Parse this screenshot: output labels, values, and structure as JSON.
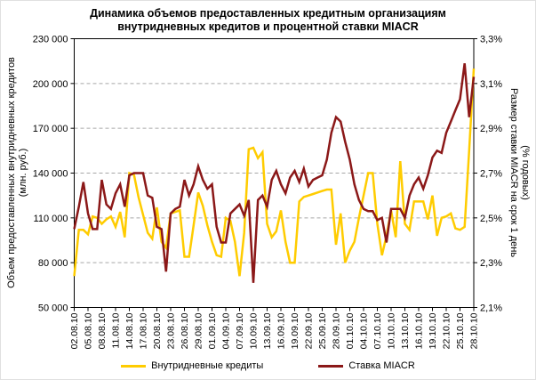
{
  "title": {
    "line1": "Динамика объемов предоставленных кредитным организациям",
    "line2": "внутридневных кредитов и процентной ставки MIACR"
  },
  "left_axis": {
    "title": "Объем предоставленных внутридневных кредитов",
    "units": "(млн. руб.)",
    "tick_labels": [
      "230 000",
      "200 000",
      "170 000",
      "140 000",
      "110 000",
      "80 000",
      "50 000"
    ]
  },
  "right_axis": {
    "title": "Размер ставки MIACR на срок 1 день",
    "units": "(% годовых)",
    "tick_labels": [
      "3,3%",
      "3,1%",
      "2,9%",
      "2,7%",
      "2,5%",
      "2,3%",
      "2,1%"
    ]
  },
  "x_axis": {
    "labels": [
      "02.08.10",
      "05.08.10",
      "08.08.10",
      "11.08.10",
      "14.08.10",
      "17.08.10",
      "20.08.10",
      "23.08.10",
      "26.08.10",
      "29.08.10",
      "01.09.10",
      "04.09.10",
      "07.09.10",
      "10.09.10",
      "13.09.10",
      "16.09.10",
      "19.09.10",
      "22.09.10",
      "25.09.10",
      "28.09.10",
      "01.10.10",
      "04.10.10",
      "07.10.10",
      "10.10.10",
      "13.10.10",
      "16.10.10",
      "19.10.10",
      "22.10.10",
      "25.10.10",
      "28.10.10"
    ]
  },
  "legend": {
    "items": [
      {
        "label": "Внутридневные кредиты"
      },
      {
        "label": "Ставка MIACR"
      }
    ]
  },
  "chart_data": {
    "type": "line",
    "x": {
      "start_date": "02.08.10",
      "end_date": "28.10.10",
      "step_days": 1,
      "n_points": 88,
      "tick_every_days": 3
    },
    "axes": {
      "left": {
        "min": 50000,
        "max": 230000,
        "step": 30000,
        "label": "млн. руб."
      },
      "right": {
        "min": 2.1,
        "max": 3.3,
        "step": 0.2,
        "label": "% годовых"
      }
    },
    "grid": "horizontal-dashed",
    "legend_position": "bottom",
    "colors": {
      "volumes": "#FFCC00",
      "miacr": "#8B1818",
      "gridline": "#a6a6a6",
      "axis": "#000000"
    },
    "series": [
      {
        "name": "Внутридневные кредиты",
        "axis": "left",
        "color": "#FFCC00",
        "values": [
          71000,
          102000,
          102000,
          99000,
          111000,
          110000,
          106000,
          109000,
          111000,
          104000,
          114000,
          97000,
          140000,
          139000,
          124000,
          112000,
          100000,
          96000,
          117000,
          94000,
          90000,
          113000,
          114000,
          115000,
          84000,
          84000,
          105000,
          127000,
          118000,
          105000,
          94000,
          85000,
          84000,
          110000,
          108000,
          94000,
          71000,
          100000,
          156000,
          157000,
          150000,
          154000,
          106000,
          97000,
          101000,
          115000,
          94000,
          80000,
          80000,
          121000,
          124000,
          125000,
          126000,
          127000,
          128000,
          129000,
          129000,
          92000,
          113000,
          80000,
          88000,
          94000,
          110000,
          125000,
          140000,
          140000,
          106000,
          85000,
          98000,
          115000,
          97000,
          148000,
          106000,
          102000,
          121000,
          121000,
          121000,
          109000,
          125000,
          98000,
          110000,
          111000,
          113000,
          103000,
          102000,
          104000,
          155000,
          210000
        ]
      },
      {
        "name": "Ставка MIACR",
        "axis": "right",
        "color": "#8B1818",
        "values": [
          2.45,
          2.55,
          2.66,
          2.52,
          2.45,
          2.45,
          2.67,
          2.56,
          2.54,
          2.61,
          2.65,
          2.55,
          2.69,
          2.7,
          2.7,
          2.7,
          2.6,
          2.59,
          2.46,
          2.45,
          2.26,
          2.52,
          2.54,
          2.55,
          2.67,
          2.6,
          2.65,
          2.73,
          2.67,
          2.63,
          2.65,
          2.46,
          2.39,
          2.39,
          2.52,
          2.54,
          2.56,
          2.51,
          2.58,
          2.21,
          2.58,
          2.6,
          2.55,
          2.67,
          2.71,
          2.65,
          2.61,
          2.68,
          2.71,
          2.66,
          2.72,
          2.64,
          2.67,
          2.68,
          2.69,
          2.76,
          2.88,
          2.95,
          2.93,
          2.84,
          2.76,
          2.65,
          2.58,
          2.54,
          2.53,
          2.53,
          2.49,
          2.5,
          2.39,
          2.54,
          2.54,
          2.54,
          2.5,
          2.6,
          2.65,
          2.68,
          2.63,
          2.69,
          2.77,
          2.8,
          2.79,
          2.88,
          2.93,
          2.98,
          3.03,
          3.19,
          2.95,
          3.13
        ]
      }
    ]
  }
}
